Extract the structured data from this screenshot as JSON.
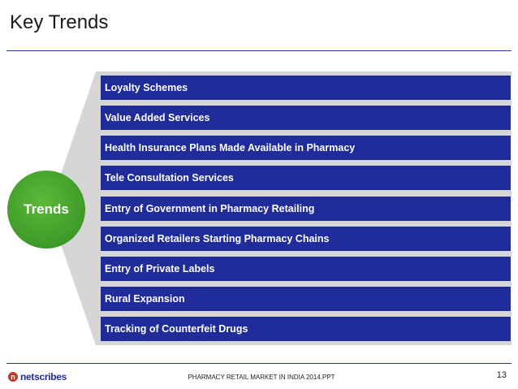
{
  "slide": {
    "title": "Key Trends",
    "center_label": "Trends",
    "items": [
      "Loyalty Schemes",
      "Value Added Services",
      "Health Insurance Plans Made Available in Pharmacy",
      "Tele Consultation Services",
      "Entry of Government in Pharmacy Retailing",
      "Organized Retailers Starting Pharmacy Chains",
      "Entry of Private Labels",
      "Rural Expansion",
      "Tracking of Counterfeit Drugs"
    ]
  },
  "footer": {
    "logo": "netscribes",
    "document_title": "PHARMACY RETAIL MARKET IN INDIA 2014.PPT",
    "page_number": "13"
  },
  "colors": {
    "item_bar": "#1f2c9a",
    "center_circle": "#4aa52e",
    "panel": "#d6d6d6",
    "rule": "#1f3a93"
  },
  "icons": {
    "logo_mark": "netscribes-logo-icon"
  }
}
